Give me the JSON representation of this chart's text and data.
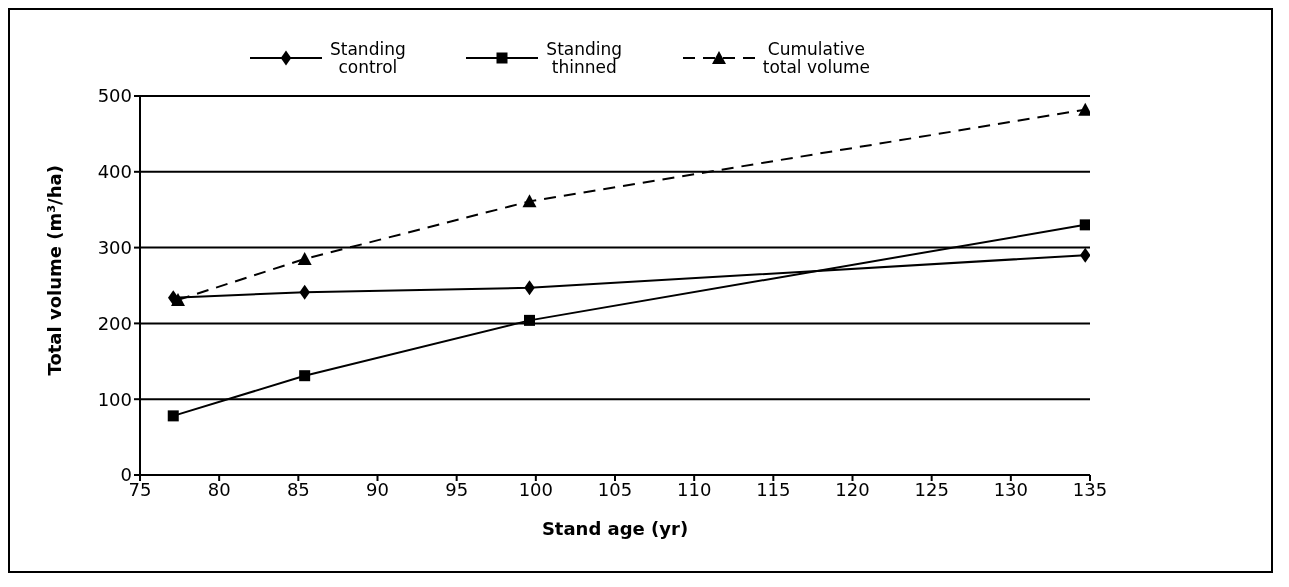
{
  "chart_data": {
    "type": "line",
    "xlabel": "Stand age (yr)",
    "ylabel": "Total volume (m³/ha)",
    "xlim": [
      75,
      135
    ],
    "xticks": [
      75,
      80,
      85,
      90,
      95,
      100,
      105,
      110,
      115,
      120,
      125,
      130,
      135
    ],
    "ylim": [
      0,
      500
    ],
    "yticks": [
      0,
      100,
      200,
      300,
      400,
      500
    ],
    "grid": "y",
    "legend": "top",
    "series": [
      {
        "name": "Standing\ncontrol",
        "color": "#000000",
        "marker": "diamond",
        "line_style": "solid",
        "x": [
          77.1,
          85.4,
          99.6,
          134.7
        ],
        "values": [
          234,
          241,
          247,
          290
        ]
      },
      {
        "name": "Standing\nthinned",
        "color": "#000000",
        "marker": "square",
        "line_style": "solid",
        "x": [
          77.1,
          85.4,
          99.6,
          134.7
        ],
        "values": [
          78,
          131,
          204,
          330
        ]
      },
      {
        "name": "Cumulative\ntotal volume",
        "color": "#000000",
        "marker": "triangle",
        "line_style": "dashed",
        "x": [
          77.4,
          85.4,
          99.6,
          134.7
        ],
        "values": [
          231,
          285,
          361,
          482
        ]
      }
    ]
  }
}
